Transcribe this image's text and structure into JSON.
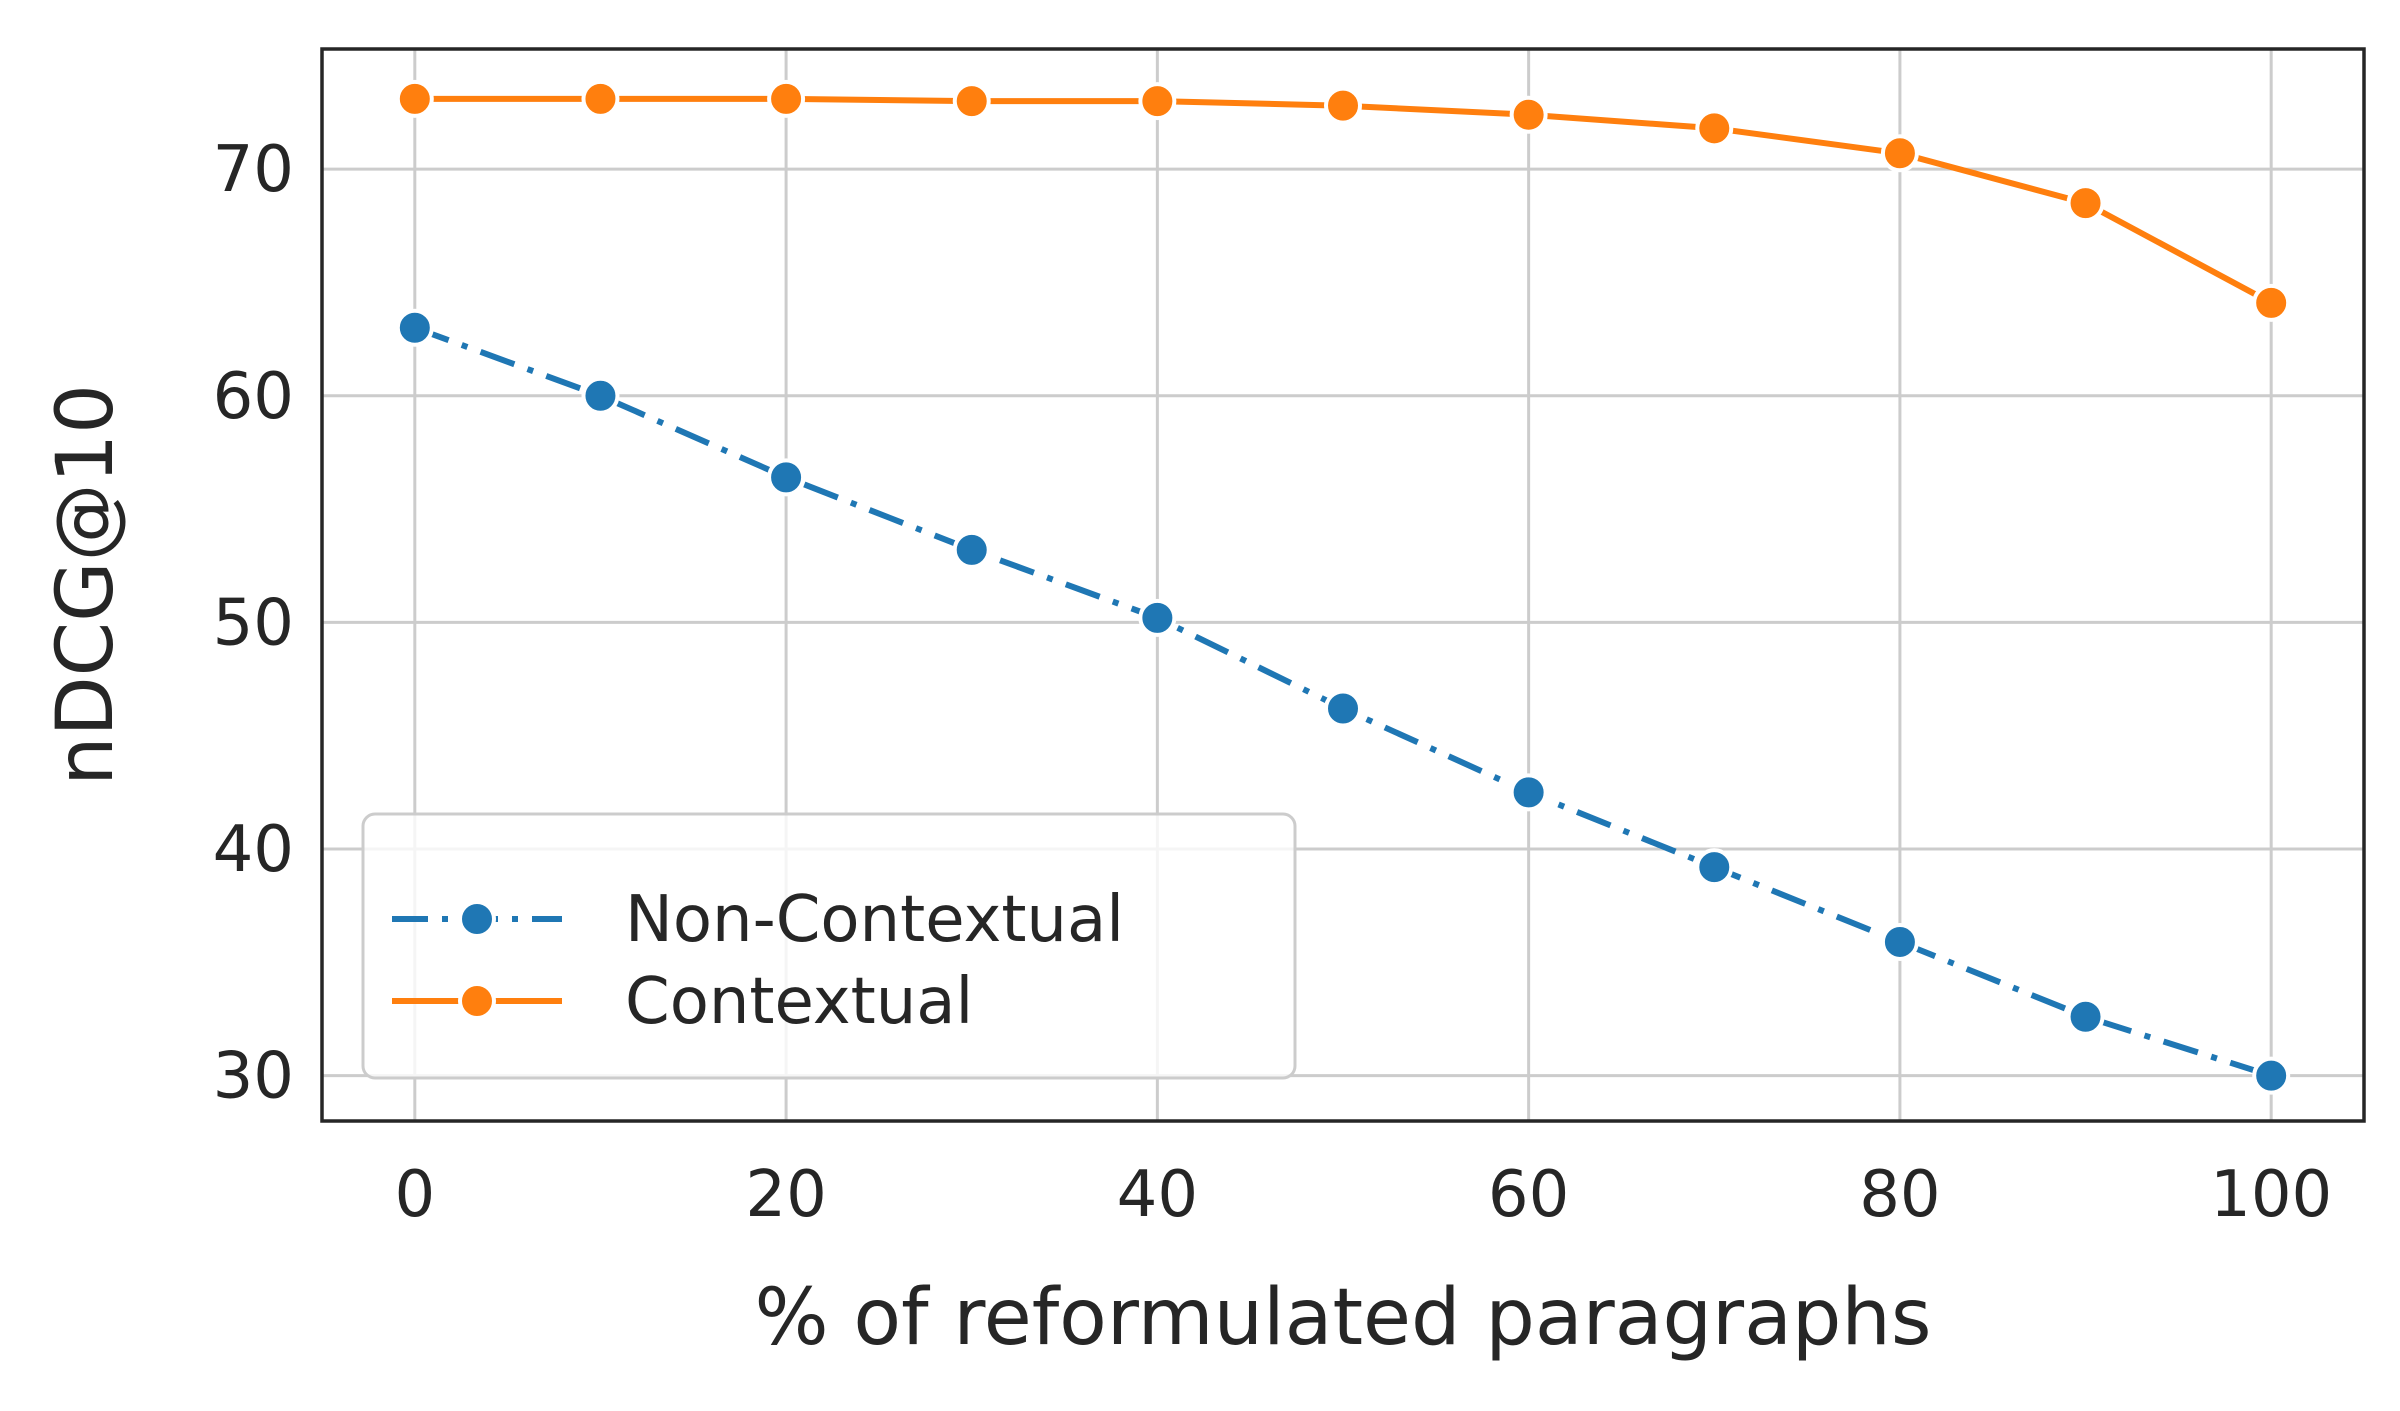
{
  "chart_data": {
    "type": "line",
    "xlabel": "% of reformulated paragraphs",
    "ylabel": "nDCG@10",
    "xlim": [
      -5,
      105
    ],
    "ylim": [
      28,
      75.3
    ],
    "xticks": [
      0,
      20,
      40,
      60,
      80,
      100
    ],
    "yticks": [
      30,
      40,
      50,
      60,
      70
    ],
    "grid": true,
    "legend_position": "lower-left",
    "x": [
      0,
      10,
      20,
      30,
      40,
      50,
      60,
      70,
      80,
      90,
      100
    ],
    "series": [
      {
        "name": "Non-Contextual",
        "color": "#1f77b4",
        "line_style": "dash-dot",
        "marker": "circle",
        "values": [
          63.0,
          60.0,
          56.4,
          53.2,
          50.2,
          46.2,
          42.5,
          39.2,
          35.9,
          32.6,
          30.0
        ]
      },
      {
        "name": "Contextual",
        "color": "#ff7f0e",
        "line_style": "solid",
        "marker": "circle",
        "values": [
          73.1,
          73.1,
          73.1,
          73.0,
          73.0,
          72.8,
          72.4,
          71.8,
          70.7,
          68.5,
          64.1
        ]
      }
    ]
  }
}
